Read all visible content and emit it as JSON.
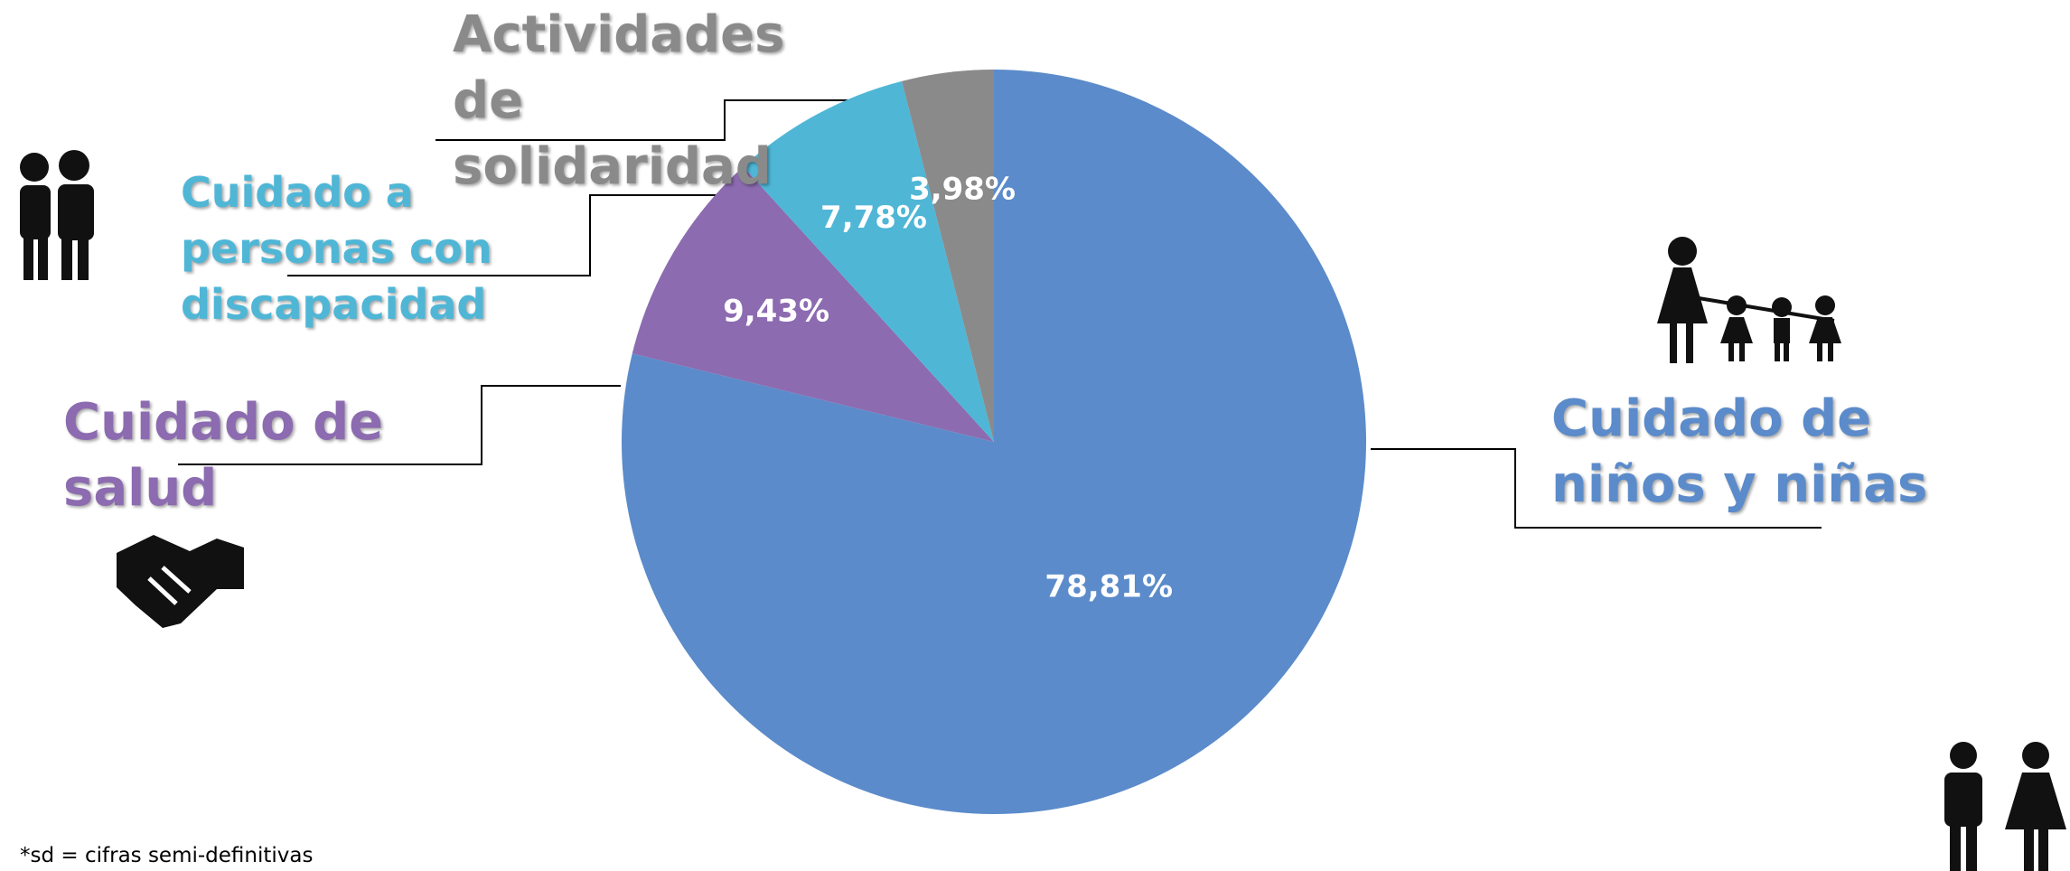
{
  "chart_data": {
    "type": "pie",
    "categories": [
      "Cuidado de niños y niñas",
      "Cuidado de salud",
      "Cuidado a personas con discapacidad",
      "Actividades de solidaridad"
    ],
    "values": [
      78.81,
      9.43,
      7.78,
      3.98
    ],
    "value_labels": [
      "78,81%",
      "9,43%",
      "7,78%",
      "3,98%"
    ],
    "colors": [
      "#5b8bca",
      "#8c6bb0",
      "#4fb6d6",
      "#8a8a8a"
    ],
    "note": "*sd = cifras  semi-definitivas"
  }
}
